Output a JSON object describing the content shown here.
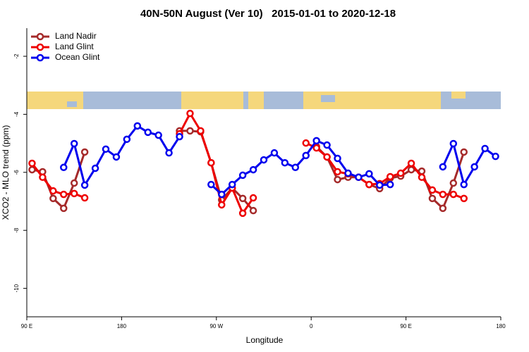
{
  "chart_data": {
    "type": "line",
    "title": "40N-50N August (Ver 10)   2015-01-01 to 2020-12-18",
    "x_label": "Longitude",
    "y_label": "XCO2 - MLO trend (ppm)",
    "x": [
      95,
      105,
      115,
      125,
      135,
      145,
      155,
      165,
      175,
      185,
      195,
      205,
      215,
      225,
      235,
      245,
      255,
      265,
      275,
      285,
      295,
      305,
      315,
      325,
      335,
      345,
      355,
      365,
      375,
      385,
      395,
      405,
      415,
      425,
      435,
      445,
      455,
      465,
      475,
      485,
      495,
      505,
      515,
      525,
      535
    ],
    "xlim": [
      90,
      540
    ],
    "xticks": [
      {
        "value": 90,
        "label": "90 E"
      },
      180,
      {
        "value": 270,
        "label": "90 W"
      },
      {
        "value": 360,
        "label": "0"
      },
      {
        "value": 450,
        "label": "90 E"
      },
      {
        "value": 540,
        "label": "180"
      }
    ],
    "ylim": [
      -10.98,
      -1.03
    ],
    "yticks": [
      -10,
      -8,
      -6,
      -4,
      -2
    ],
    "legend": "top-left",
    "series": [
      {
        "name": "Land Nadir",
        "color": "#a52a2a",
        "values": [
          -5.91,
          -5.98,
          -6.9,
          -7.24,
          -6.37,
          -5.3,
          null,
          null,
          null,
          null,
          null,
          null,
          null,
          null,
          -4.57,
          -4.57,
          -4.6,
          -5.67,
          -6.95,
          -6.54,
          -6.9,
          -7.32,
          null,
          null,
          null,
          null,
          null,
          -5.11,
          -5.47,
          -6.25,
          -6.17,
          -6.17,
          -6.42,
          -6.56,
          -6.2,
          -6.13,
          -5.91,
          -5.96,
          -6.9,
          -7.24,
          -6.37,
          -5.3,
          null,
          null,
          null
        ]
      },
      {
        "name": "Land Glint",
        "color": "#ee0000",
        "values": [
          -5.69,
          -6.17,
          -6.64,
          -6.76,
          -6.73,
          -6.88,
          null,
          null,
          null,
          null,
          null,
          null,
          null,
          null,
          -4.67,
          -3.97,
          -4.57,
          -5.67,
          -7.12,
          -6.54,
          -7.41,
          -6.88,
          null,
          null,
          null,
          null,
          -4.99,
          -5.16,
          -5.47,
          -5.98,
          -6.05,
          -6.17,
          -6.42,
          -6.39,
          -6.15,
          -6.03,
          -5.69,
          -6.17,
          -6.61,
          -6.76,
          -6.76,
          -6.9,
          null,
          null,
          null
        ]
      },
      {
        "name": "Ocean Glint",
        "color": "#0000ee",
        "values": [
          null,
          null,
          null,
          -5.83,
          -5.01,
          -6.44,
          -5.86,
          -5.2,
          -5.47,
          -4.86,
          -4.4,
          -4.62,
          -4.72,
          -5.33,
          -4.77,
          null,
          null,
          -6.42,
          -6.76,
          -6.42,
          -6.1,
          -5.91,
          -5.57,
          -5.33,
          -5.67,
          -5.83,
          -5.42,
          -4.91,
          -5.06,
          -5.52,
          -6.03,
          -6.17,
          -6.05,
          -6.44,
          -6.42,
          null,
          null,
          null,
          null,
          -5.81,
          -5.01,
          -6.42,
          -5.81,
          -5.18,
          -5.45
        ]
      }
    ]
  }
}
